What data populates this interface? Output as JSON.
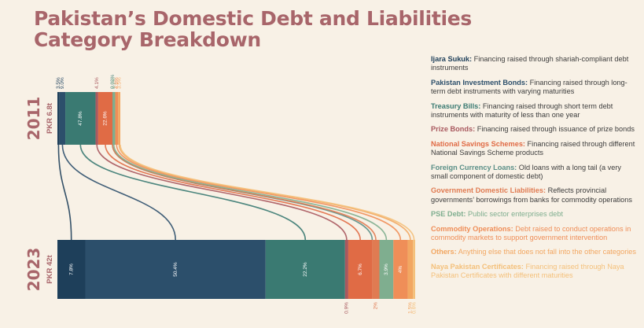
{
  "title": {
    "line1": "Pakistan’s Domestic Debt and Liabilities",
    "line2": "Category Breakdown"
  },
  "colors": {
    "ijara_sukuk": "#1e3f5a",
    "pakistan_investment_bonds": "#2c4f6b",
    "treasury_bills": "#3a7a72",
    "prize_bonds": "#a8585e",
    "national_savings_schemes": "#e06b45",
    "foreign_currency_loans": "#5a8f87",
    "government_domestic_liabilities": "#e07b52",
    "pse_debt": "#7fae8f",
    "commodity_operations": "#ef8e58",
    "others": "#f2a762",
    "naya_pakistan_certificates": "#f4c07a"
  },
  "legend": [
    {
      "key": "ijara_sukuk",
      "name": "Ijara Sukuk:",
      "desc": "Financing raised through shariah-compliant debt instruments"
    },
    {
      "key": "pakistan_investment_bonds",
      "name": "Pakistan Investment Bonds:",
      "desc": "Financing raised through long-term debt instruments with varying maturities"
    },
    {
      "key": "treasury_bills",
      "name": "Treasury Bills:",
      "desc": "Financing raised through short term debt instruments with maturity of less than one year"
    },
    {
      "key": "prize_bonds",
      "name": "Prize Bonds:",
      "desc": "Financing raised through issuance of prize bonds"
    },
    {
      "key": "national_savings_schemes",
      "name": "National Savings Schemes:",
      "desc": "Financing raised through different National Savings Scheme products"
    },
    {
      "key": "foreign_currency_loans",
      "name": "Foreign Currency Loans:",
      "desc": "Old loans with a long tail (a very small component of domestic debt)"
    },
    {
      "key": "government_domestic_liabilities",
      "name": "Government Domestic Liabilities:",
      "desc": "Reflects provincial governments’ borrowings from banks for commodity operations"
    },
    {
      "key": "pse_debt",
      "name": "PSE Debt:",
      "desc": "Public sector enterprises debt"
    },
    {
      "key": "commodity_operations",
      "name": "Commodity Operations:",
      "desc": "Debt raised to conduct operations in commodity markets to support government intervention"
    },
    {
      "key": "others",
      "name": "Others:",
      "desc": "Anything else that does not fall into the other categories"
    },
    {
      "key": "naya_pakistan_certificates",
      "name": "Naya Pakistan Certificates:",
      "desc": "Financing raised through Naya Pakistan Certificates with different maturities"
    }
  ],
  "chart_data": {
    "type": "bar",
    "orientation": "horizontal-stacked",
    "categories": [
      "Ijara Sukuk",
      "Pakistan Investment Bonds",
      "Treasury Bills",
      "Prize Bonds",
      "National Savings Schemes",
      "Foreign Currency Loans",
      "Government Domestic Liabilities",
      "PSE Debt",
      "Commodity Operations",
      "Others",
      "Naya Pakistan Certificates"
    ],
    "series": [
      {
        "year": "2011",
        "total": "PKR 6.8t",
        "total_trillion": 6.8,
        "values": [
          3.5,
          9.0,
          47.8,
          4.1,
          22.6,
          0.02,
          0.0,
          4.2,
          4.6,
          3.5,
          0.0
        ],
        "labels": [
          "3.5%",
          "9.0%",
          "47.8%",
          "4.1%",
          "22.6%",
          "0.02%",
          "",
          "4.2%",
          "4.6%",
          "3.5%",
          ""
        ]
      },
      {
        "year": "2023",
        "total": "PKR 42t",
        "total_trillion": 42,
        "values": [
          7.8,
          50.4,
          22.2,
          0.9,
          6.7,
          0.0,
          2.0,
          3.9,
          4.0,
          1.5,
          0.6
        ],
        "labels": [
          "7.8%",
          "50.4%",
          "22.2%",
          "0.9%",
          "6.7%",
          "",
          "2%",
          "3.9%",
          "4%",
          "1.5%",
          "0.6%"
        ]
      }
    ],
    "legend_position": "right"
  }
}
